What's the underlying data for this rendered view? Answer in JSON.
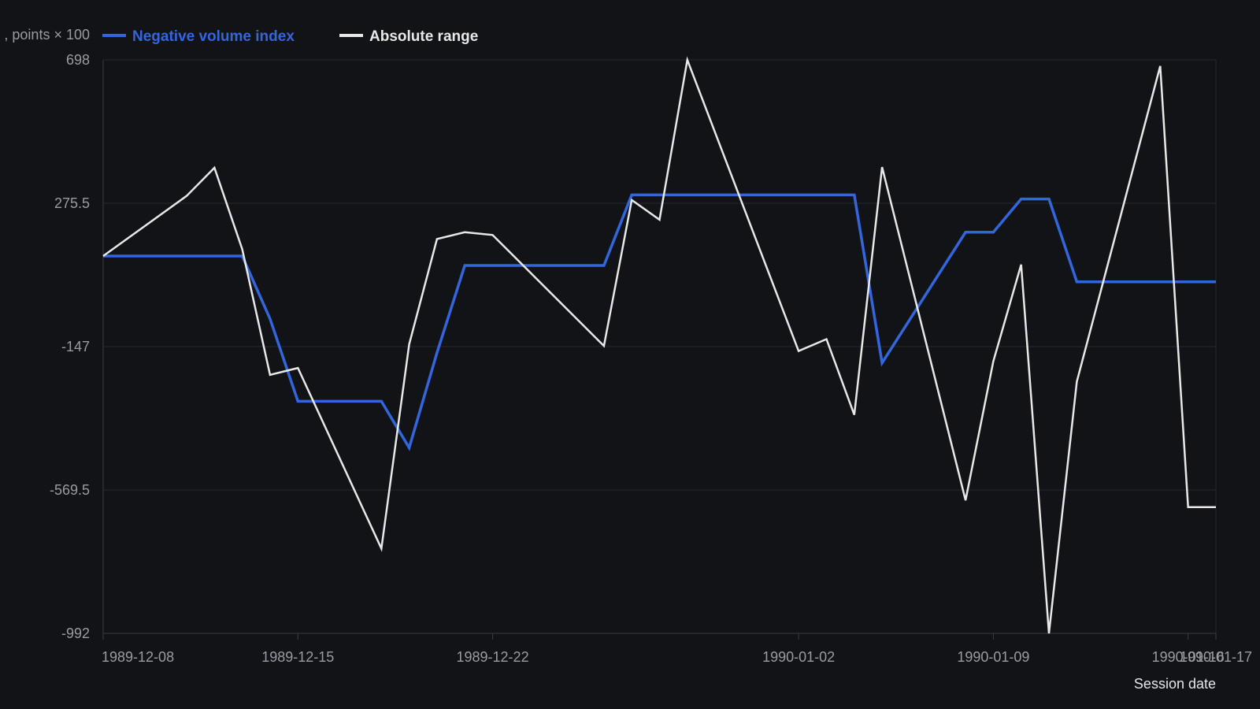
{
  "chart_data": {
    "type": "line",
    "xlabel": "Session date",
    "ylabel": ", points × 100",
    "ylim": [
      -992,
      698
    ],
    "yticks": [
      "698",
      "275.5",
      "-147",
      "-569.5",
      "-992"
    ],
    "xticks": [
      "1989-12-08",
      "1989-12-15",
      "1989-12-22",
      "1990-01-02",
      "1990-01-09",
      "1990-01-16",
      "1990-01-17"
    ],
    "grid": true,
    "legend_position": "top-left",
    "x": [
      "1989-12-08",
      "1989-12-11",
      "1989-12-12",
      "1989-12-13",
      "1989-12-14",
      "1989-12-15",
      "1989-12-18",
      "1989-12-19",
      "1989-12-20",
      "1989-12-21",
      "1989-12-22",
      "1989-12-26",
      "1989-12-27",
      "1989-12-28",
      "1989-12-29",
      "1990-01-02",
      "1990-01-03",
      "1990-01-04",
      "1990-01-05",
      "1990-01-08",
      "1990-01-09",
      "1990-01-10",
      "1990-01-11",
      "1990-01-12",
      "1990-01-15",
      "1990-01-16",
      "1990-01-17"
    ],
    "series": [
      {
        "name": "Negative volume index",
        "color": "#3366dd",
        "values": [
          120,
          120,
          120,
          120,
          -65,
          -308,
          -308,
          -445,
          -165,
          92,
          92,
          92,
          300,
          300,
          300,
          300,
          300,
          300,
          -195,
          190,
          190,
          288,
          288,
          44,
          44,
          44,
          44
        ]
      },
      {
        "name": "Absolute range",
        "color": "#e8e8e8",
        "values": [
          120,
          297,
          380,
          140,
          -230,
          -210,
          -742,
          -140,
          170,
          190,
          182,
          -145,
          285,
          227,
          698,
          -160,
          -125,
          -348,
          382,
          -600,
          -190,
          95,
          -992,
          -250,
          680,
          -620,
          -620
        ]
      }
    ]
  }
}
